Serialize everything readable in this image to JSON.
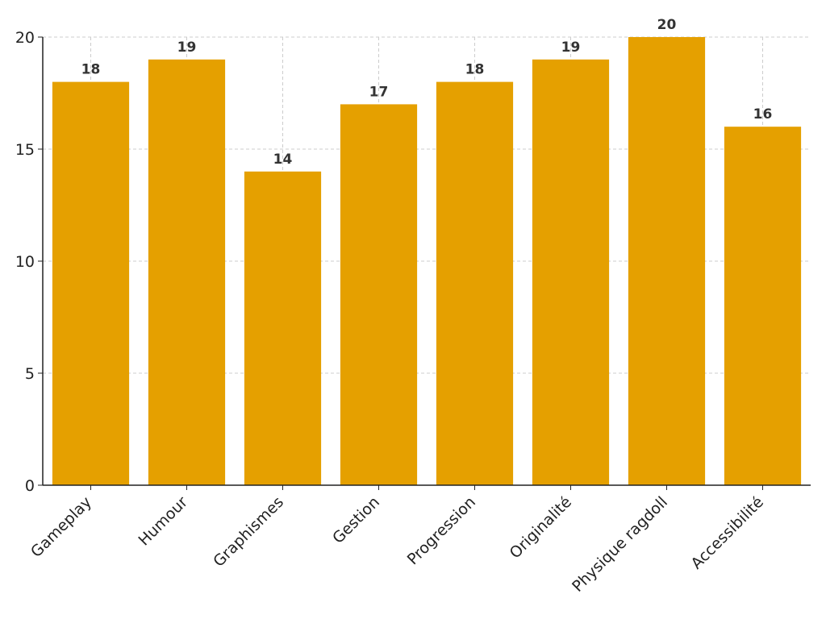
{
  "chart_data": {
    "type": "bar",
    "title": "",
    "xlabel": "",
    "ylabel": "",
    "categories": [
      "Gameplay",
      "Humour",
      "Graphismes",
      "Gestion",
      "Progression",
      "Originalité",
      "Physique ragdoll",
      "Accessibilité"
    ],
    "values": [
      18,
      19,
      14,
      17,
      18,
      19,
      20,
      16
    ],
    "data_labels": [
      "18",
      "19",
      "14",
      "17",
      "18",
      "19",
      "20",
      "16"
    ],
    "ylim": [
      0,
      20
    ],
    "yticks": [
      0,
      5,
      10,
      15,
      20
    ],
    "ytick_labels": [
      "0",
      "5",
      "10",
      "15",
      "20"
    ],
    "grid": true,
    "legend": "none",
    "bar_color": "#E5A000"
  }
}
